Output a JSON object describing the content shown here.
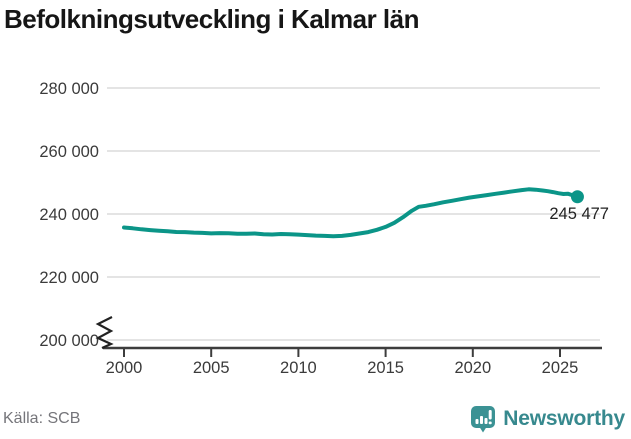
{
  "title": "Befolkningsutveckling i Kalmar län",
  "source": "Källa: SCB",
  "brand": {
    "name": "Newsworthy",
    "icon": "bar-chart-speech-bubble-icon",
    "color": "#3b9294",
    "text_color": "#37898e"
  },
  "colors": {
    "line": "#0b9588",
    "grid": "#e4e4e4",
    "axis": "#3d3d3d",
    "tick_text": "#3b3b3b",
    "end_label_text": "#222222",
    "title_text": "#161616",
    "source_text": "#75757a"
  },
  "chart_data": {
    "type": "line",
    "title": "Befolkningsutveckling i Kalmar län",
    "xlabel": "",
    "ylabel": "",
    "grid": "horizontal-only",
    "legend": "none",
    "y_axis_break": true,
    "xlim": [
      1998.8,
      2027.4
    ],
    "ylim": [
      200000,
      285000
    ],
    "x_ticks": {
      "values": [
        2000,
        2005,
        2010,
        2015,
        2020,
        2025
      ],
      "labels": [
        "2000",
        "2005",
        "2010",
        "2015",
        "2020",
        "2025"
      ]
    },
    "y_ticks": {
      "values": [
        280000,
        260000,
        240000,
        220000,
        200000
      ],
      "labels": [
        "280 000",
        "260 000",
        "240 000",
        "220 000",
        "200 000"
      ]
    },
    "series": [
      {
        "name": "Befolkning, Kalmar län",
        "x": [
          2000,
          2000.5,
          2001,
          2001.5,
          2002,
          2002.5,
          2003,
          2003.5,
          2004,
          2004.5,
          2005,
          2005.5,
          2006,
          2006.5,
          2007,
          2007.5,
          2008,
          2008.5,
          2009,
          2009.5,
          2010,
          2010.5,
          2011,
          2011.5,
          2012,
          2012.5,
          2013,
          2013.5,
          2014,
          2014.5,
          2015,
          2015.5,
          2016,
          2016.5,
          2016.9,
          2017.3,
          2017.8,
          2018.3,
          2018.8,
          2019.3,
          2019.8,
          2020.3,
          2020.8,
          2021.3,
          2021.8,
          2022.3,
          2022.8,
          2023.2,
          2023.6,
          2024,
          2024.3,
          2024.6,
          2024.9,
          2025.2,
          2025.45,
          2025.7,
          2026
        ],
        "y": [
          235700,
          235450,
          235150,
          234900,
          234700,
          234500,
          234300,
          234250,
          234100,
          234000,
          233850,
          233950,
          233900,
          233750,
          233700,
          233800,
          233550,
          233500,
          233650,
          233600,
          233450,
          233300,
          233150,
          233050,
          232950,
          233050,
          233350,
          233800,
          234250,
          235000,
          235900,
          237200,
          239000,
          241000,
          242300,
          242600,
          243100,
          243700,
          244200,
          244700,
          245200,
          245600,
          246000,
          246400,
          246800,
          247200,
          247600,
          247850,
          247700,
          247450,
          247250,
          246950,
          246600,
          246350,
          246450,
          246000,
          245477
        ]
      }
    ],
    "end_point": {
      "x": 2026,
      "y": 245477,
      "label": "245 477"
    }
  }
}
